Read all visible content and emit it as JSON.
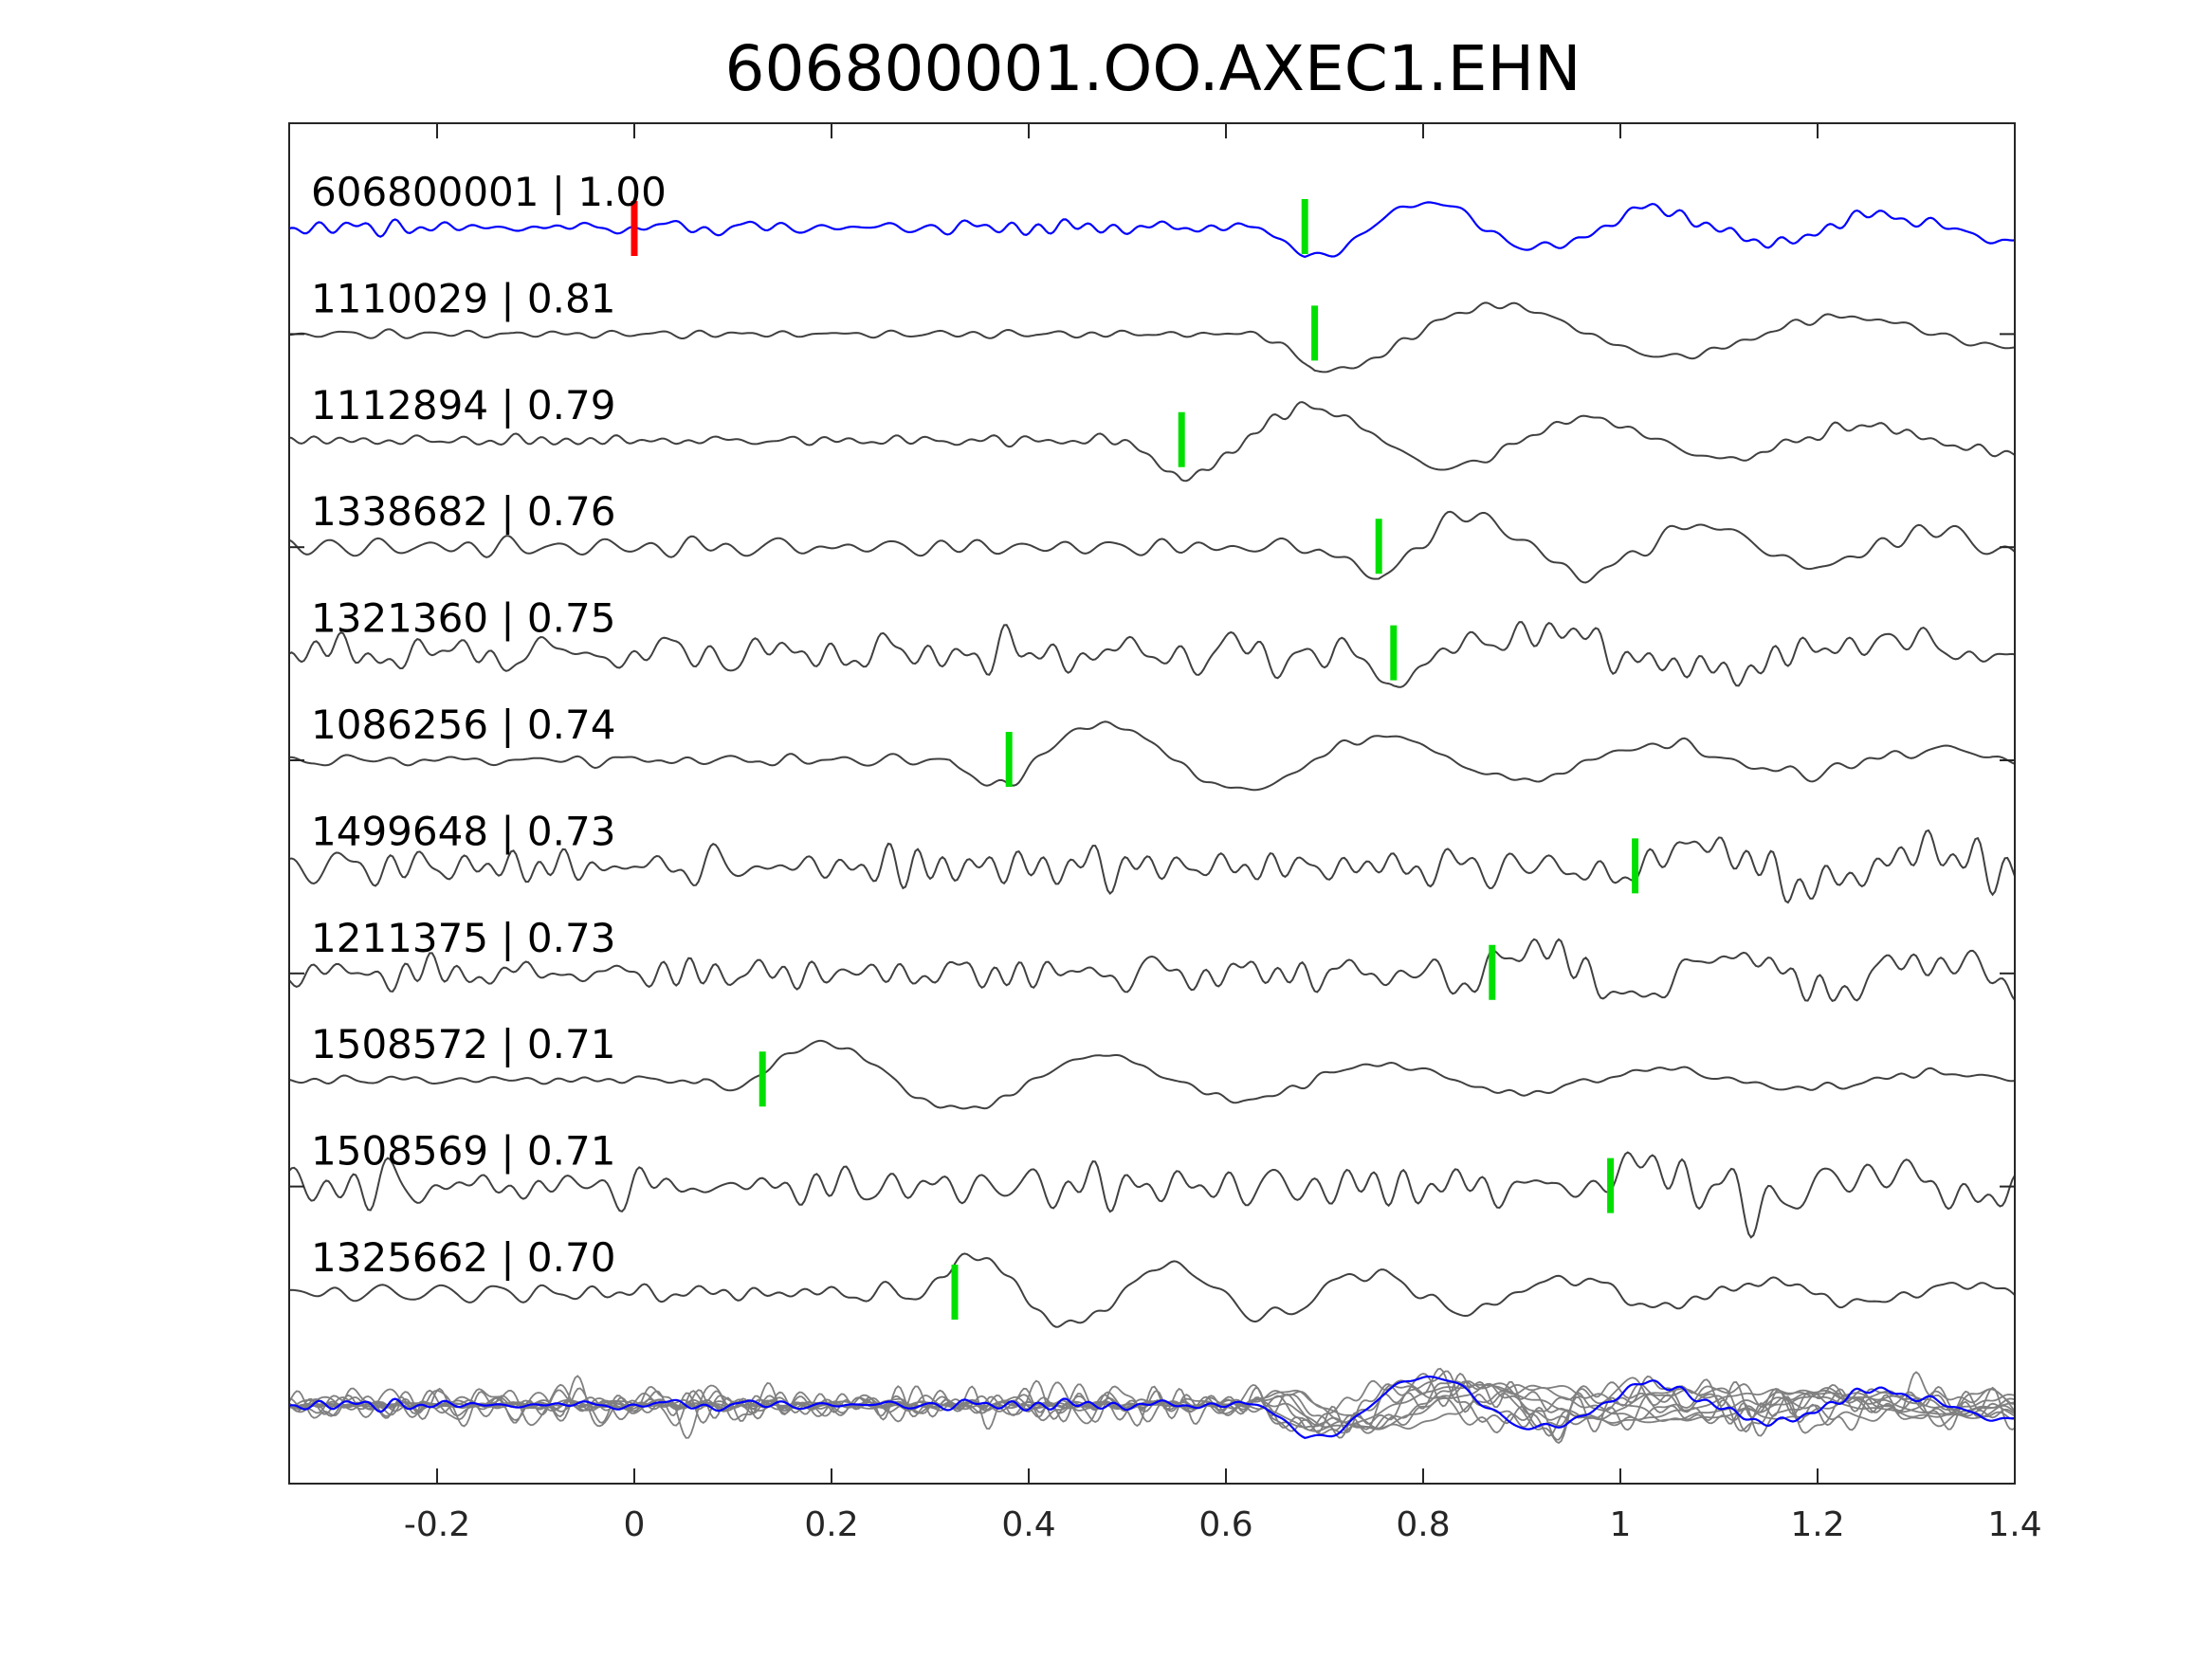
{
  "chart_data": {
    "type": "line",
    "title": "606800001.OO.AXEC1.EHN",
    "xlabel": "",
    "ylabel": "",
    "xlim": [
      -0.35,
      1.4
    ],
    "xticks": [
      -0.2,
      0,
      0.2,
      0.4,
      0.6,
      0.8,
      1,
      1.2,
      1.4
    ],
    "xtick_labels": [
      "-0.2",
      "0",
      "0.2",
      "0.4",
      "0.6",
      "0.8",
      "1",
      "1.2",
      "1.4"
    ],
    "grid": false,
    "legend": "none",
    "colors": {
      "reference_trace": "#0000ff",
      "neighbor_trace": "#404040",
      "overlay_trace": "#808080",
      "reference_pick": "#ff0000",
      "pick": "#00e000",
      "axes": "#262626"
    },
    "reference_pick_time": 0.0,
    "traces": [
      {
        "label": "606800001 | 1.00",
        "pick": 0.68,
        "reference": true
      },
      {
        "label": "1110029 | 0.81",
        "pick": 0.69
      },
      {
        "label": "1112894 | 0.79",
        "pick": 0.555
      },
      {
        "label": "1338682 | 0.76",
        "pick": 0.755
      },
      {
        "label": "1321360 | 0.75",
        "pick": 0.77
      },
      {
        "label": "1086256 | 0.74",
        "pick": 0.38
      },
      {
        "label": "1499648 | 0.73",
        "pick": 1.015
      },
      {
        "label": "1211375 | 0.73",
        "pick": 0.87
      },
      {
        "label": "1508572 | 0.71",
        "pick": 0.13
      },
      {
        "label": "1508569 | 0.71",
        "pick": 0.99
      },
      {
        "label": "1325662 | 0.70",
        "pick": 0.325
      }
    ]
  }
}
